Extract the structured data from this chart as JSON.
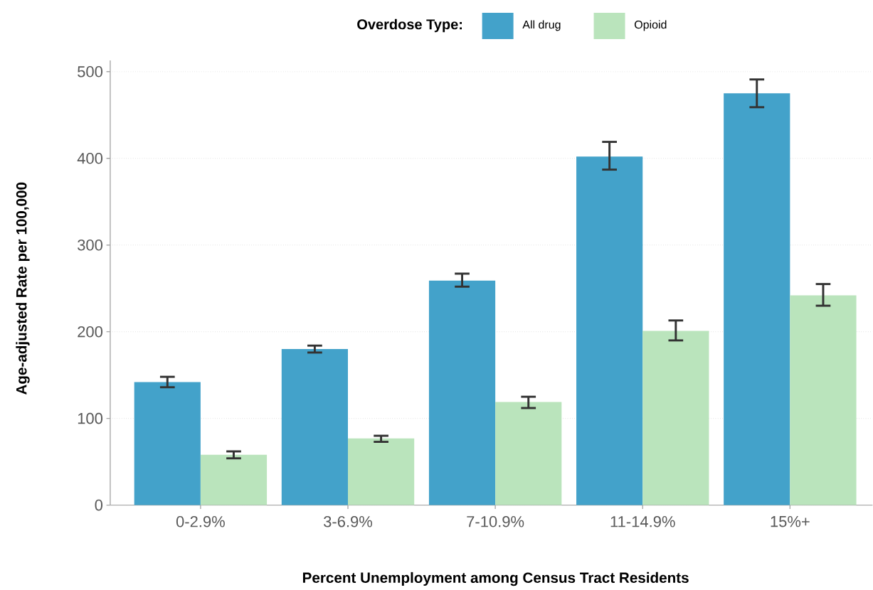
{
  "chart_data": {
    "type": "bar",
    "legend_title": "Overdose Type:",
    "xlabel": "Percent Unemployment among Census Tract Residents",
    "ylabel": "Age-adjusted Rate per 100,000",
    "categories": [
      "0-2.9%",
      "3-6.9%",
      "7-10.9%",
      "11-14.9%",
      "15%+"
    ],
    "series": [
      {
        "name": "All drug",
        "color": "#43a2ca",
        "values": [
          142,
          180,
          259,
          402,
          475
        ],
        "errors": [
          [
            136,
            148
          ],
          [
            176,
            184
          ],
          [
            252,
            267
          ],
          [
            387,
            419
          ],
          [
            459,
            491
          ]
        ]
      },
      {
        "name": "Opioid",
        "color": "#bae4bc",
        "values": [
          58,
          77,
          119,
          201,
          242
        ],
        "errors": [
          [
            54,
            62
          ],
          [
            73,
            80
          ],
          [
            112,
            125
          ],
          [
            190,
            213
          ],
          [
            230,
            255
          ]
        ]
      }
    ],
    "ylim": [
      0,
      513
    ],
    "yticks": [
      0,
      100,
      200,
      300,
      400,
      500
    ],
    "grid": "y",
    "legend": "top"
  }
}
